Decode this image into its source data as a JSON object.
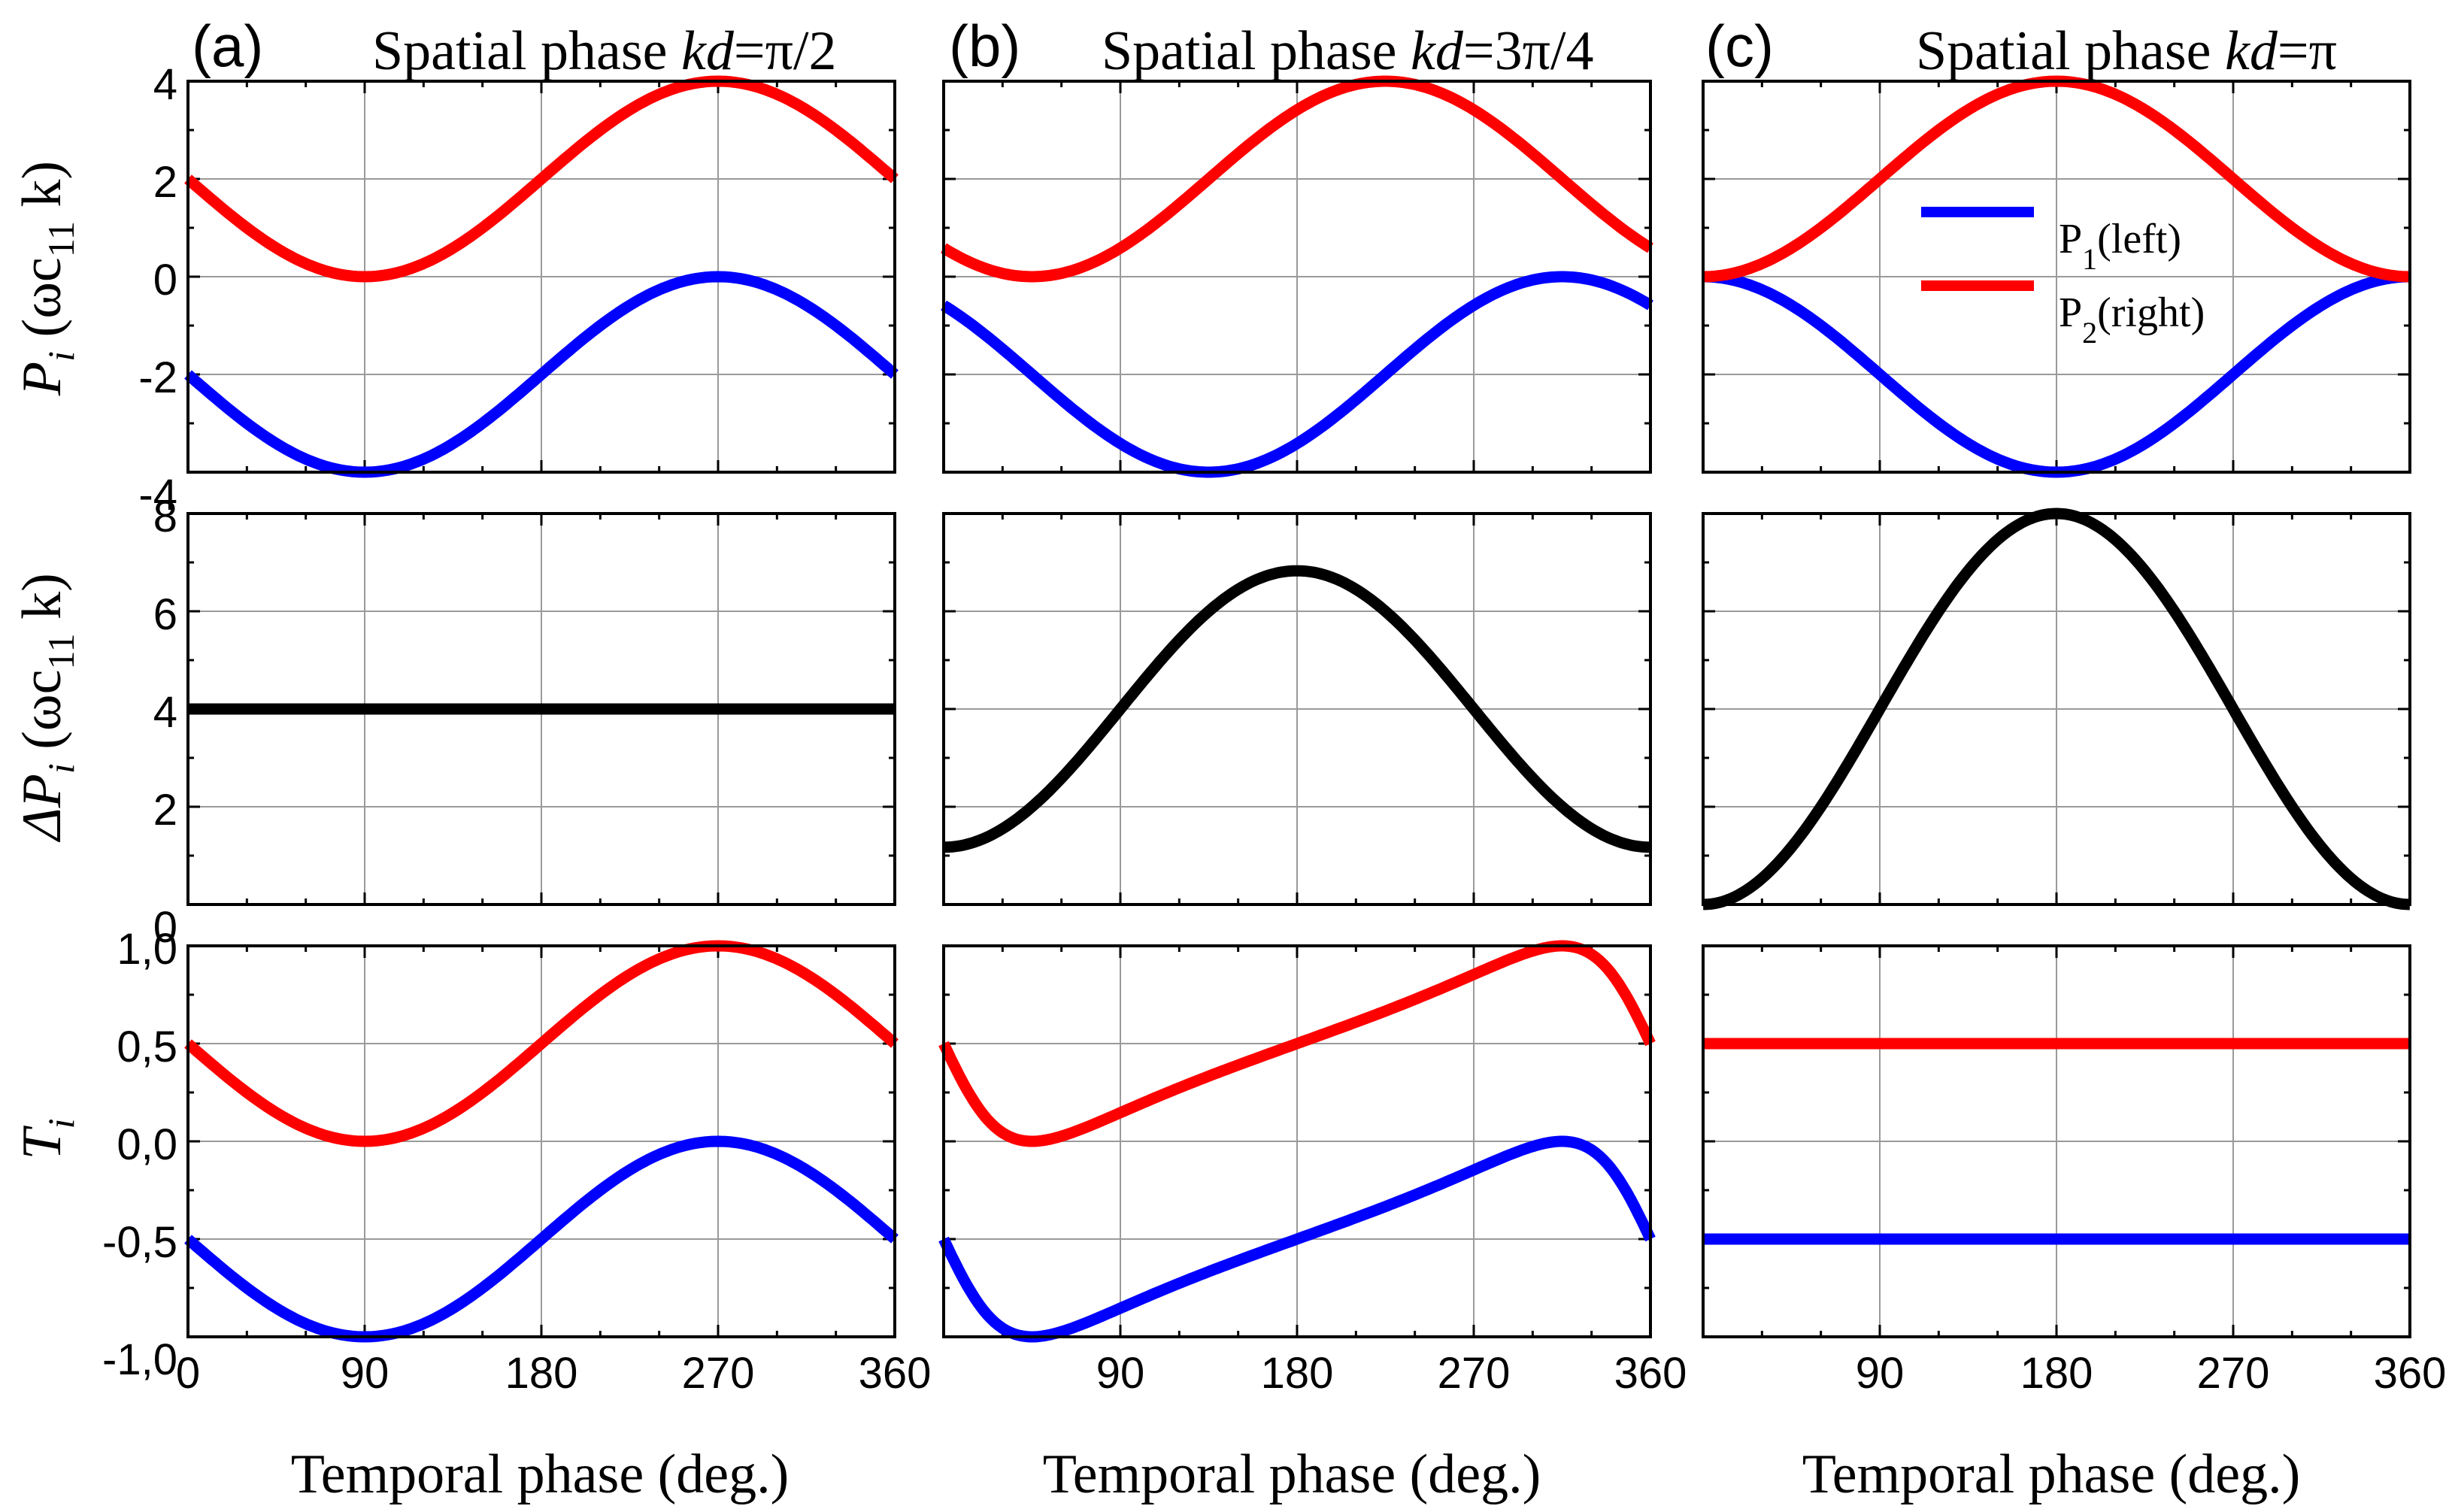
{
  "figure": {
    "x_label": "Temporal phase (deg.)",
    "columns": [
      {
        "tag": "(a)",
        "title_prefix": "Spatial phase ",
        "title_var": "kd",
        "title_value": "=π/2"
      },
      {
        "tag": "(b)",
        "title_prefix": "Spatial phase ",
        "title_var": "kd",
        "title_value": "=3π/4"
      },
      {
        "tag": "(c)",
        "title_prefix": "Spatial phase ",
        "title_var": "kd",
        "title_value": "=π"
      }
    ],
    "rows": [
      {
        "ylabel_main": "P",
        "ylabel_sub": "i",
        "ylabel_unit_open": " (ωc",
        "ylabel_unit_sub": "11",
        "ylabel_unit_close": " k)"
      },
      {
        "ylabel_main": "ΔP",
        "ylabel_sub": "i",
        "ylabel_unit_open": " (ωc",
        "ylabel_unit_sub": "11",
        "ylabel_unit_close": " k)"
      },
      {
        "ylabel_main": "T",
        "ylabel_sub": "i",
        "ylabel_unit_open": "",
        "ylabel_unit_sub": "",
        "ylabel_unit_close": ""
      }
    ],
    "legend": [
      {
        "main": "P",
        "sub": "1",
        "rest": "(left)",
        "color": "#0000ff"
      },
      {
        "main": "P",
        "sub": "2",
        "rest": "(right)",
        "color": "#ff0000"
      }
    ],
    "x_ticks": {
      "col0": [
        "0",
        "90",
        "180",
        "270",
        "360"
      ],
      "col1": [
        "90",
        "180",
        "270",
        "360"
      ],
      "col2": [
        "90",
        "180",
        "270",
        "360"
      ]
    },
    "y_ticks": {
      "row0": [
        "4",
        "2",
        "0",
        "-2",
        "-4"
      ],
      "row1": [
        "8",
        "6",
        "4",
        "2",
        "0"
      ],
      "row2": [
        "1,0",
        "0,5",
        "0,0",
        "-0,5",
        "-1,0"
      ]
    }
  },
  "chart_data": [
    {
      "type": "line",
      "panel": "(a) top",
      "x_range": [
        0,
        360
      ],
      "ylim": [
        -4,
        4
      ],
      "series": [
        {
          "name": "P1(left)",
          "color": "#0000ff",
          "formula": "2*cos(x-270)-2"
        },
        {
          "name": "P2(right)",
          "color": "#ff0000",
          "formula": "2*cos(x-270)+2"
        }
      ]
    },
    {
      "type": "line",
      "panel": "(a) middle",
      "x_range": [
        0,
        360
      ],
      "ylim": [
        0,
        8
      ],
      "series": [
        {
          "name": "ΔP",
          "color": "#000000",
          "formula": "4"
        }
      ]
    },
    {
      "type": "line",
      "panel": "(a) bottom",
      "x_range": [
        0,
        360
      ],
      "ylim": [
        -1,
        1
      ],
      "series": [
        {
          "name": "T1",
          "color": "#0000ff",
          "formula": "0.5*cos(x-270)-0.5"
        },
        {
          "name": "T2",
          "color": "#ff0000",
          "formula": "0.5*cos(x-270)+0.5"
        }
      ]
    },
    {
      "type": "line",
      "panel": "(b) top",
      "x_range": [
        0,
        360
      ],
      "ylim": [
        -4,
        4
      ],
      "series": [
        {
          "name": "P1(left)",
          "color": "#0000ff",
          "formula": "2*cos(x-315)-2"
        },
        {
          "name": "P2(right)",
          "color": "#ff0000",
          "formula": "2*cos(x-225)+2"
        }
      ]
    },
    {
      "type": "line",
      "panel": "(b) middle",
      "x_range": [
        0,
        360
      ],
      "ylim": [
        0,
        8
      ],
      "series": [
        {
          "name": "ΔP",
          "color": "#000000",
          "formula": "4-2.828*cos(x)"
        }
      ]
    },
    {
      "type": "line",
      "panel": "(b) bottom",
      "x_range": [
        0,
        360
      ],
      "ylim": [
        -1,
        1
      ],
      "series": [
        {
          "name": "T1",
          "color": "#0000ff",
          "formula": "P1/ΔP"
        },
        {
          "name": "T2",
          "color": "#ff0000",
          "formula": "P2/ΔP"
        }
      ]
    },
    {
      "type": "line",
      "panel": "(c) top",
      "x_range": [
        0,
        360
      ],
      "ylim": [
        -4,
        4
      ],
      "series": [
        {
          "name": "P1(left)",
          "color": "#0000ff",
          "formula": "2*cos(x)-2"
        },
        {
          "name": "P2(right)",
          "color": "#ff0000",
          "formula": "2-2*cos(x)"
        }
      ]
    },
    {
      "type": "line",
      "panel": "(c) middle",
      "x_range": [
        0,
        360
      ],
      "ylim": [
        0,
        8
      ],
      "series": [
        {
          "name": "ΔP",
          "color": "#000000",
          "formula": "4-4*cos(x)"
        }
      ]
    },
    {
      "type": "line",
      "panel": "(c) bottom",
      "x_range": [
        0,
        360
      ],
      "ylim": [
        -1,
        1
      ],
      "series": [
        {
          "name": "T1",
          "color": "#0000ff",
          "formula": "-0.5"
        },
        {
          "name": "T2",
          "color": "#ff0000",
          "formula": "0.5"
        }
      ]
    }
  ]
}
